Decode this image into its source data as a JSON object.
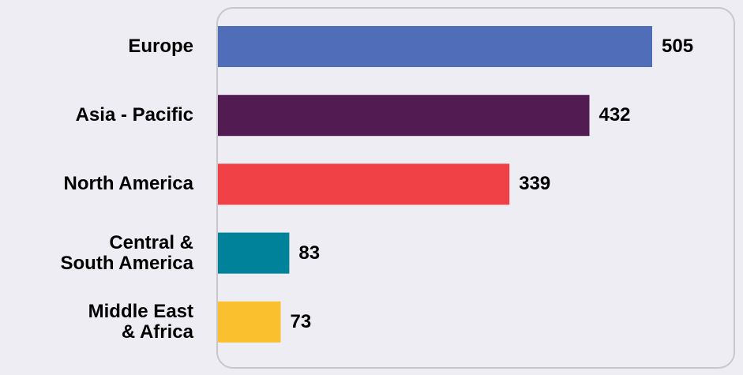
{
  "chart_data": {
    "type": "bar",
    "orientation": "horizontal",
    "categories": [
      "Europe",
      "Asia - Pacific",
      "North America",
      "Central &\nSouth America",
      "Middle East\n& Africa"
    ],
    "values": [
      505,
      432,
      339,
      83,
      73
    ],
    "colors": [
      "#4f6db8",
      "#521b51",
      "#ef4146",
      "#00829b",
      "#fbc02d"
    ]
  }
}
